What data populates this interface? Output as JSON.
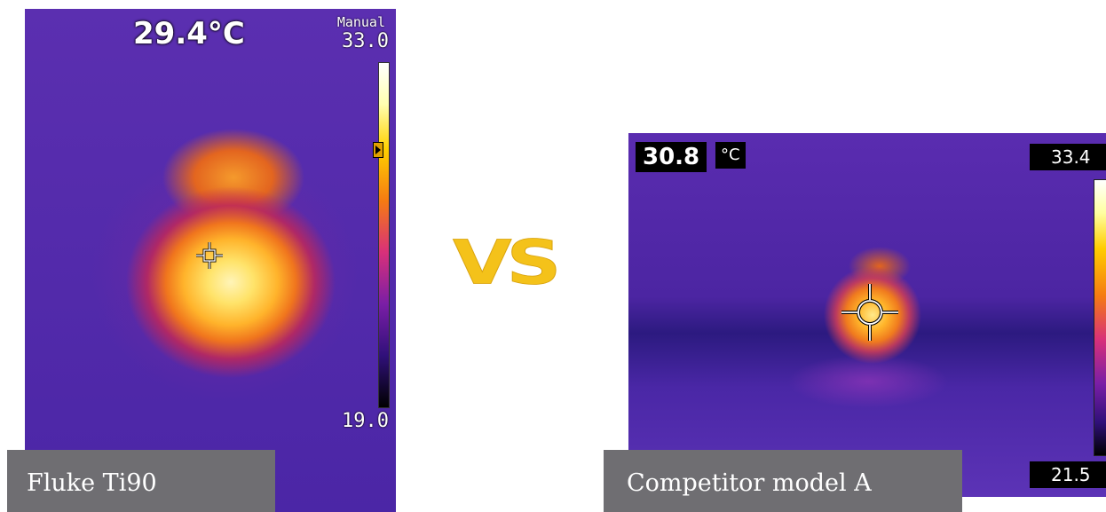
{
  "left_image": {
    "spot_temperature": "29.4°C",
    "range_mode": "Manual",
    "scale_max": "33.0",
    "scale_min": "19.0",
    "caption": "Fluke Ti90",
    "palette": "ironbow"
  },
  "divider": {
    "text": "VS",
    "color": "#f4c21a"
  },
  "right_image": {
    "spot_temperature": "30.8",
    "unit": "°C",
    "scale_max": "33.4",
    "scale_min": "21.5",
    "caption": "Competitor model A",
    "palette": "ironbow"
  },
  "colors": {
    "caption_bg": "#6f6e72",
    "thermal_background": "#5b2fb0",
    "hot_spot": "#ffe36a"
  }
}
